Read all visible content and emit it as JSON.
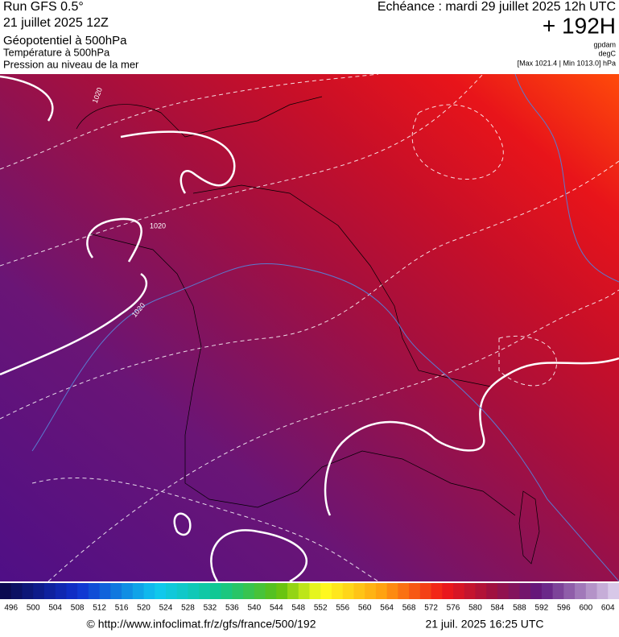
{
  "header": {
    "run": "Run GFS 0.5°",
    "date": "21 juillet 2025 12Z",
    "field1": "Géopotentiel à 500hPa",
    "field2": "Température à 500hPa",
    "field3": "Pression au niveau de la mer",
    "valid": "Echéance : mardi 29 juillet 2025 12h UTC",
    "lead": "+ 192H",
    "unit1": "gpdam",
    "unit2": "degC",
    "range": "[Max 1021.4 | Min 1013.0] hPa"
  },
  "map": {
    "contour_labels": [
      "1020",
      "1020",
      "1020"
    ]
  },
  "colorbar": {
    "labels": [
      496,
      500,
      504,
      508,
      512,
      516,
      520,
      524,
      528,
      532,
      536,
      540,
      544,
      548,
      552,
      556,
      560,
      564,
      568,
      572,
      576,
      580,
      584,
      588,
      592,
      596,
      600,
      604
    ]
  },
  "footer": {
    "source": "© http://www.infoclimat.fr/z/gfs/france/500/192",
    "timestamp": "21 juil. 2025 16:25 UTC"
  }
}
